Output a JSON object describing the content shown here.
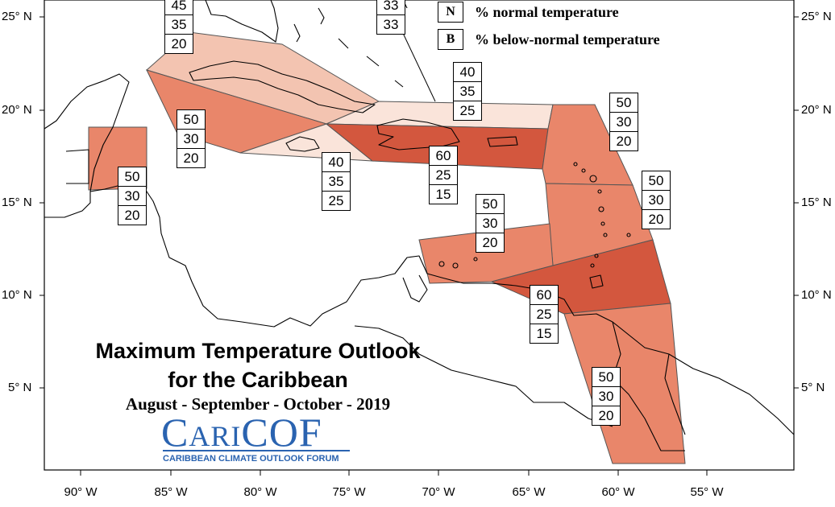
{
  "title_line1": "Maximum Temperature Outlook",
  "title_line2": "for the Caribbean",
  "subtitle": "August - September - October - 2019",
  "logo": {
    "wordmark": "CariCOF",
    "tagline": "CARIBBEAN CLIMATE OUTLOOK FORUM",
    "color": "#2a63b0"
  },
  "legend": [
    {
      "key": "N",
      "text": "% normal temperature"
    },
    {
      "key": "B",
      "text": "% below-normal temperature"
    }
  ],
  "lat_labels": [
    "25° N",
    "20° N",
    "15° N",
    "10° N",
    "5° N"
  ],
  "lon_labels": [
    "90° W",
    "85° W",
    "80° W",
    "75° W",
    "70° W",
    "65° W",
    "60° W",
    "55° W"
  ],
  "colors": {
    "p50": "#e9866a",
    "p60": "#d3573e",
    "p45": "#f3c4b1",
    "p40": "#fae4da",
    "border": "#555555"
  },
  "regions": [
    {
      "id": "bahamas-partial",
      "values": [
        "45",
        "35",
        "20"
      ]
    },
    {
      "id": "turks-caicos-partial",
      "values": [
        "33",
        "33"
      ]
    },
    {
      "id": "cuba-central-north",
      "values": [
        "40",
        "35",
        "25"
      ]
    },
    {
      "id": "cuba-south",
      "values": [
        "50",
        "30",
        "20"
      ]
    },
    {
      "id": "belize",
      "values": [
        "50",
        "30",
        "20"
      ]
    },
    {
      "id": "jamaica",
      "values": [
        "40",
        "35",
        "25"
      ]
    },
    {
      "id": "hispaniola-puerto-rico",
      "values": [
        "60",
        "25",
        "15"
      ]
    },
    {
      "id": "leeward-islands",
      "values": [
        "50",
        "30",
        "20"
      ]
    },
    {
      "id": "windward-islands",
      "values": [
        "50",
        "30",
        "20"
      ]
    },
    {
      "id": "abc-islands-coast",
      "values": [
        "50",
        "30",
        "20"
      ]
    },
    {
      "id": "trinidad-barbados",
      "values": [
        "60",
        "25",
        "15"
      ]
    },
    {
      "id": "guianas",
      "values": [
        "50",
        "30",
        "20"
      ]
    }
  ]
}
